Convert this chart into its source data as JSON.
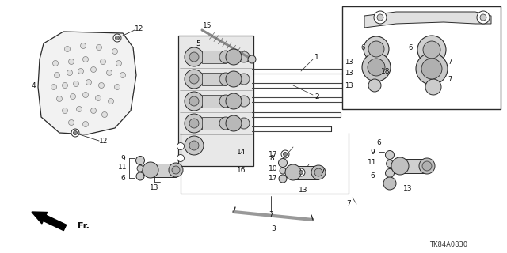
{
  "bg_color": "#ffffff",
  "part_number": "TK84A0830",
  "line_color": "#2a2a2a",
  "gray_fill": "#aaaaaa",
  "light_gray": "#dddddd",
  "dark_gray": "#555555"
}
